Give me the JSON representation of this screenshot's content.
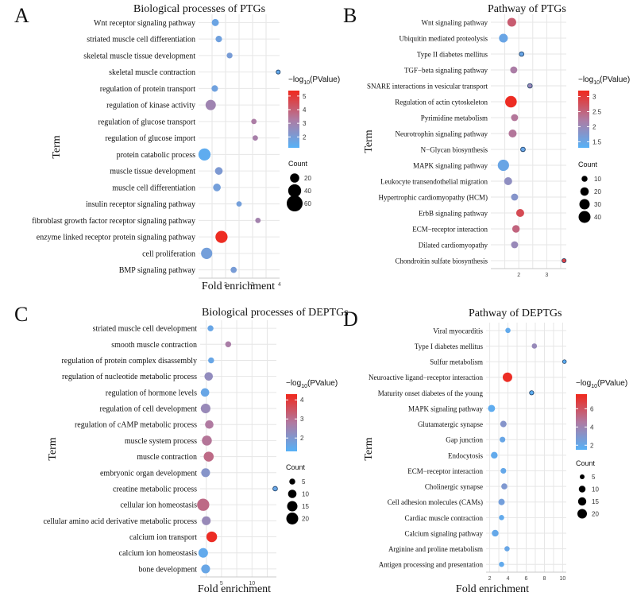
{
  "colors": {
    "low": "#56b1f7",
    "mid": "#b07aa1",
    "high": "#f0281c",
    "grid": "#e6e6e6",
    "dotStroke": "#1a3c63"
  },
  "chart_data": [
    {
      "type": "scatter",
      "letter": "A",
      "title": "Biological processes of PTGs",
      "xlabel": "Fold enrichment",
      "ylabel": "Term",
      "xlim": [
        1,
        4
      ],
      "xticks": [
        2,
        3,
        4
      ],
      "color_legend": {
        "title_prefix": "−log",
        "title_sub": "10",
        "title_suffix": "(PValue)",
        "range": [
          1.2,
          5.4
        ],
        "ticks": [
          2,
          3,
          4,
          5
        ]
      },
      "size_legend": {
        "title": "Count",
        "values": [
          20,
          40,
          60
        ],
        "max": 60
      },
      "points": [
        {
          "term": "Wnt receptor signaling pathway",
          "fold": 1.62,
          "count": 12,
          "pvalue": 1.7
        },
        {
          "term": "striated muscle cell differentiation",
          "fold": 1.75,
          "count": 10,
          "pvalue": 1.8
        },
        {
          "term": "skeletal muscle tissue development",
          "fold": 2.15,
          "count": 8,
          "pvalue": 2.0
        },
        {
          "term": "skeletal muscle contraction",
          "fold": 3.95,
          "count": 4,
          "pvalue": 1.5
        },
        {
          "term": "regulation of protein transport",
          "fold": 1.6,
          "count": 10,
          "pvalue": 1.8
        },
        {
          "term": "regulation of kinase activity",
          "fold": 1.45,
          "count": 25,
          "pvalue": 2.9
        },
        {
          "term": "regulation of glucose transport",
          "fold": 3.05,
          "count": 7,
          "pvalue": 3.2
        },
        {
          "term": "regulation of glucose import",
          "fold": 3.1,
          "count": 7,
          "pvalue": 3.1
        },
        {
          "term": "protein catabolic process",
          "fold": 1.22,
          "count": 35,
          "pvalue": 1.4
        },
        {
          "term": "muscle tissue development",
          "fold": 1.75,
          "count": 14,
          "pvalue": 2.1
        },
        {
          "term": "muscle cell differentiation",
          "fold": 1.68,
          "count": 14,
          "pvalue": 1.9
        },
        {
          "term": "insulin receptor signaling pathway",
          "fold": 2.5,
          "count": 7,
          "pvalue": 1.9
        },
        {
          "term": "fibroblast growth factor receptor signaling pathway",
          "fold": 3.2,
          "count": 7,
          "pvalue": 3.0
        },
        {
          "term": "enzyme linked receptor protein signaling pathway",
          "fold": 1.85,
          "count": 35,
          "pvalue": 5.3
        },
        {
          "term": "cell proliferation",
          "fold": 1.3,
          "count": 30,
          "pvalue": 1.9
        },
        {
          "term": "BMP signaling pathway",
          "fold": 2.3,
          "count": 9,
          "pvalue": 2.0
        }
      ]
    },
    {
      "type": "scatter",
      "letter": "B",
      "title": "Pathway of PTGs",
      "xlabel": "",
      "ylabel": "Term",
      "xlim": [
        1,
        3.7
      ],
      "xticks": [
        2,
        3
      ],
      "color_legend": {
        "title_prefix": "−log",
        "title_sub": "10",
        "title_suffix": "(PValue)",
        "range": [
          1.3,
          3.2
        ],
        "ticks": [
          1.5,
          2.0,
          2.5,
          3.0
        ]
      },
      "size_legend": {
        "title": "Count",
        "values": [
          10,
          20,
          30,
          40
        ],
        "max": 40
      },
      "points": [
        {
          "term": "Wnt signaling pathway",
          "fold": 1.75,
          "count": 22,
          "pvalue": 2.6
        },
        {
          "term": "Ubiquitin mediated proteolysis",
          "fold": 1.45,
          "count": 22,
          "pvalue": 1.5
        },
        {
          "term": "Type II diabetes mellitus",
          "fold": 2.1,
          "count": 6,
          "pvalue": 1.5
        },
        {
          "term": "TGF−beta signaling pathway",
          "fold": 1.82,
          "count": 14,
          "pvalue": 2.2
        },
        {
          "term": "SNARE interactions in vesicular transport",
          "fold": 2.4,
          "count": 6,
          "pvalue": 2.0
        },
        {
          "term": "Regulation of actin cytoskeleton",
          "fold": 1.72,
          "count": 38,
          "pvalue": 3.15
        },
        {
          "term": "Pyrimidine metabolism",
          "fold": 1.85,
          "count": 14,
          "pvalue": 2.3
        },
        {
          "term": "Neurotrophin signaling pathway",
          "fold": 1.78,
          "count": 18,
          "pvalue": 2.3
        },
        {
          "term": "N−Glycan biosynthesis",
          "fold": 2.15,
          "count": 6,
          "pvalue": 1.5
        },
        {
          "term": "MAPK signaling pathway",
          "fold": 1.45,
          "count": 36,
          "pvalue": 1.5
        },
        {
          "term": "Leukocyte transendothelial migration",
          "fold": 1.62,
          "count": 18,
          "pvalue": 1.9
        },
        {
          "term": "Hypertrophic cardiomyopathy (HCM)",
          "fold": 1.85,
          "count": 14,
          "pvalue": 1.8
        },
        {
          "term": "ErbB signaling pathway",
          "fold": 2.05,
          "count": 18,
          "pvalue": 2.8
        },
        {
          "term": "ECM−receptor interaction",
          "fold": 1.9,
          "count": 16,
          "pvalue": 2.5
        },
        {
          "term": "Dilated cardiomyopathy",
          "fold": 1.85,
          "count": 14,
          "pvalue": 2.0
        },
        {
          "term": "Chondroitin sulfate biosynthesis",
          "fold": 3.62,
          "count": 5,
          "pvalue": 2.9
        }
      ]
    },
    {
      "type": "scatter",
      "letter": "C",
      "title": "Biological processes of DEPTGs",
      "xlabel": "Fold enrichment",
      "ylabel": "Term",
      "xlim": [
        1.5,
        14
      ],
      "xticks": [
        5,
        10
      ],
      "color_legend": {
        "title_prefix": "−log",
        "title_sub": "10",
        "title_suffix": "(PValue)",
        "range": [
          1.3,
          4.3
        ],
        "ticks": [
          2,
          3,
          4
        ]
      },
      "size_legend": {
        "title": "Count",
        "values": [
          5,
          10,
          15,
          20
        ],
        "max": 20
      },
      "points": [
        {
          "term": "striated muscle cell development",
          "fold": 3.2,
          "count": 5,
          "pvalue": 1.6
        },
        {
          "term": "smooth muscle contraction",
          "fold": 6.1,
          "count": 5,
          "pvalue": 2.7
        },
        {
          "term": "regulation of protein complex disassembly",
          "fold": 3.3,
          "count": 5,
          "pvalue": 1.6
        },
        {
          "term": "regulation of nucleotide metabolic process",
          "fold": 2.9,
          "count": 10,
          "pvalue": 2.3
        },
        {
          "term": "regulation of hormone levels",
          "fold": 2.3,
          "count": 10,
          "pvalue": 1.6
        },
        {
          "term": "regulation of cell development",
          "fold": 2.4,
          "count": 13,
          "pvalue": 2.4
        },
        {
          "term": "regulation of cAMP metabolic process",
          "fold": 3.0,
          "count": 10,
          "pvalue": 2.8
        },
        {
          "term": "muscle system process",
          "fold": 2.6,
          "count": 14,
          "pvalue": 2.9
        },
        {
          "term": "muscle contraction",
          "fold": 2.9,
          "count": 14,
          "pvalue": 3.1
        },
        {
          "term": "embryonic organ development",
          "fold": 2.4,
          "count": 11,
          "pvalue": 2.1
        },
        {
          "term": "creatine metabolic process",
          "fold": 13.8,
          "count": 3,
          "pvalue": 1.6
        },
        {
          "term": "cellular ion homeostasis",
          "fold": 2.0,
          "count": 21,
          "pvalue": 3.1
        },
        {
          "term": "cellular amino acid derivative metabolic process",
          "fold": 2.5,
          "count": 11,
          "pvalue": 2.4
        },
        {
          "term": "calcium ion transport",
          "fold": 3.4,
          "count": 16,
          "pvalue": 4.2
        },
        {
          "term": "calcium ion homeostasis",
          "fold": 2.0,
          "count": 13,
          "pvalue": 1.5
        },
        {
          "term": "bone development",
          "fold": 2.4,
          "count": 11,
          "pvalue": 1.6
        }
      ]
    },
    {
      "type": "scatter",
      "letter": "D",
      "title": "Pathway of DEPTGs",
      "xlabel": "Fold enrichment",
      "ylabel": "Term",
      "xlim": [
        1.6,
        10.4
      ],
      "xticks": [
        2,
        4,
        6,
        8,
        10
      ],
      "color_legend": {
        "title_prefix": "−log",
        "title_sub": "10",
        "title_suffix": "(PValue)",
        "range": [
          1.5,
          7.6
        ],
        "ticks": [
          2,
          4,
          6
        ]
      },
      "size_legend": {
        "title": "Count",
        "values": [
          5,
          10,
          15,
          20
        ],
        "max": 20
      },
      "points": [
        {
          "term": "Viral myocarditis",
          "fold": 4.0,
          "count": 6,
          "pvalue": 1.9
        },
        {
          "term": "Type I diabetes mellitus",
          "fold": 6.9,
          "count": 6,
          "pvalue": 3.7
        },
        {
          "term": "Sulfur metabolism",
          "fold": 10.2,
          "count": 3,
          "pvalue": 1.7
        },
        {
          "term": "Neuroactive ligand−receptor interaction",
          "fold": 3.95,
          "count": 20,
          "pvalue": 7.4
        },
        {
          "term": "Maturity onset diabetes of the young",
          "fold": 6.6,
          "count": 4,
          "pvalue": 1.7
        },
        {
          "term": "MAPK signaling pathway",
          "fold": 2.2,
          "count": 11,
          "pvalue": 1.8
        },
        {
          "term": "Glutamatergic synapse",
          "fold": 3.5,
          "count": 9,
          "pvalue": 3.1
        },
        {
          "term": "Gap junction",
          "fold": 3.4,
          "count": 7,
          "pvalue": 2.1
        },
        {
          "term": "Endocytosis",
          "fold": 2.5,
          "count": 10,
          "pvalue": 1.9
        },
        {
          "term": "ECM−receptor interaction",
          "fold": 3.5,
          "count": 7,
          "pvalue": 2.0
        },
        {
          "term": "Cholinergic synapse",
          "fold": 3.6,
          "count": 8,
          "pvalue": 2.9
        },
        {
          "term": "Cell adhesion molecules (CAMs)",
          "fold": 3.3,
          "count": 9,
          "pvalue": 2.5
        },
        {
          "term": "Cardiac muscle contraction",
          "fold": 3.3,
          "count": 6,
          "pvalue": 1.9
        },
        {
          "term": "Calcium signaling pathway",
          "fold": 2.6,
          "count": 10,
          "pvalue": 2.0
        },
        {
          "term": "Arginine and proline metabolism",
          "fold": 3.9,
          "count": 6,
          "pvalue": 2.1
        },
        {
          "term": "Antigen processing and presentation",
          "fold": 3.3,
          "count": 6,
          "pvalue": 1.9
        }
      ]
    }
  ]
}
